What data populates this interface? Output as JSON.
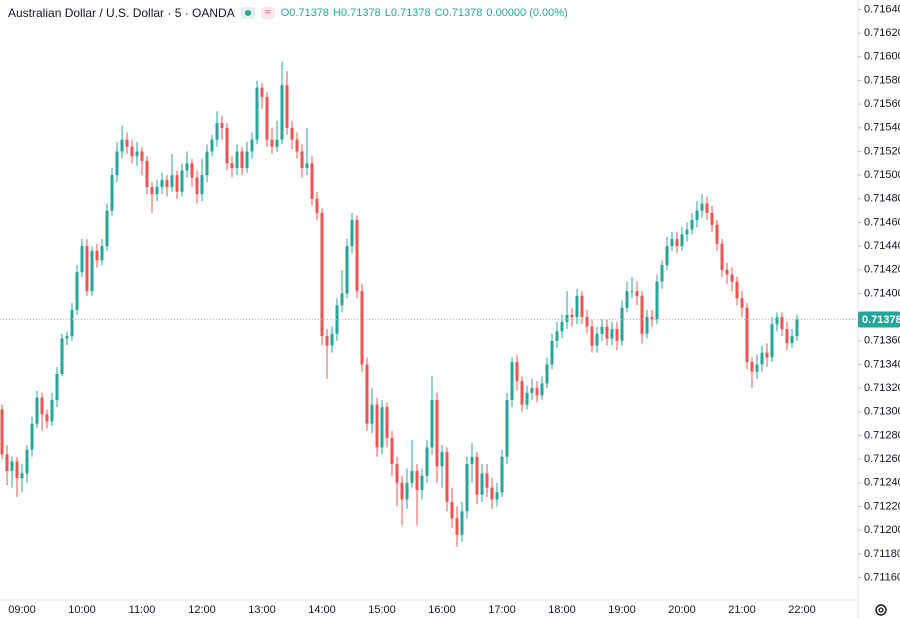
{
  "chart_data": {
    "type": "candlestick",
    "title": "Australian Dollar / U.S. Dollar · 5 · OANDA",
    "legend": [
      "O0.71378",
      "H0.71378",
      "L0.71378",
      "C0.71378",
      "0.00000 (0.00%)"
    ],
    "up_color": "#26a69a",
    "down_color": "#ef5350",
    "last_price": 0.71378,
    "ylim": [
      0.71141,
      0.71648
    ],
    "yticks": [
      {
        "value": 0.7116,
        "label": "0.71160"
      },
      {
        "value": 0.7118,
        "label": "0.71180"
      },
      {
        "value": 0.712,
        "label": "0.71200"
      },
      {
        "value": 0.7122,
        "label": "0.71220"
      },
      {
        "value": 0.7124,
        "label": "0.71240"
      },
      {
        "value": 0.7126,
        "label": "0.71260"
      },
      {
        "value": 0.7128,
        "label": "0.71280"
      },
      {
        "value": 0.713,
        "label": "0.71300"
      },
      {
        "value": 0.7132,
        "label": "0.71320"
      },
      {
        "value": 0.7134,
        "label": "0.71340"
      },
      {
        "value": 0.7136,
        "label": "0.71360"
      },
      {
        "value": 0.7138,
        "label": "0.71380"
      },
      {
        "value": 0.714,
        "label": "0.71400"
      },
      {
        "value": 0.7142,
        "label": "0.71420"
      },
      {
        "value": 0.7144,
        "label": "0.71440"
      },
      {
        "value": 0.7146,
        "label": "0.71460"
      },
      {
        "value": 0.7148,
        "label": "0.71480"
      },
      {
        "value": 0.715,
        "label": "0.71500"
      },
      {
        "value": 0.7152,
        "label": "0.71520"
      },
      {
        "value": 0.7154,
        "label": "0.71540"
      },
      {
        "value": 0.7156,
        "label": "0.71560"
      },
      {
        "value": 0.7158,
        "label": "0.71580"
      },
      {
        "value": 0.716,
        "label": "0.71600"
      },
      {
        "value": 0.7162,
        "label": "0.71620"
      },
      {
        "value": 0.7164,
        "label": "0.71640"
      }
    ],
    "categories": [
      null,
      null,
      null,
      null,
      "09:00",
      null,
      null,
      null,
      null,
      null,
      null,
      null,
      null,
      null,
      null,
      null,
      "10:00",
      null,
      null,
      null,
      null,
      null,
      null,
      null,
      null,
      null,
      null,
      null,
      "11:00",
      null,
      null,
      null,
      null,
      null,
      null,
      null,
      null,
      null,
      null,
      null,
      "12:00",
      null,
      null,
      null,
      null,
      null,
      null,
      null,
      null,
      null,
      null,
      null,
      "13:00",
      null,
      null,
      null,
      null,
      null,
      null,
      null,
      null,
      null,
      null,
      null,
      "14:00",
      null,
      null,
      null,
      null,
      null,
      null,
      null,
      null,
      null,
      null,
      null,
      "15:00",
      null,
      null,
      null,
      null,
      null,
      null,
      null,
      null,
      null,
      null,
      null,
      "16:00",
      null,
      null,
      null,
      null,
      null,
      null,
      null,
      null,
      null,
      null,
      null,
      "17:00",
      null,
      null,
      null,
      null,
      null,
      null,
      null,
      null,
      null,
      null,
      null,
      "18:00",
      null,
      null,
      null,
      null,
      null,
      null,
      null,
      null,
      null,
      null,
      null,
      "19:00",
      null,
      null,
      null,
      null,
      null,
      null,
      null,
      null,
      null,
      null,
      null,
      "20:00",
      null,
      null,
      null,
      null,
      null,
      null,
      null,
      null,
      null,
      null,
      null,
      "21:00",
      null,
      null,
      null,
      null,
      null,
      null,
      null,
      null,
      null,
      null,
      null,
      "22:00"
    ],
    "open": [
      0.71302,
      0.71264,
      0.7125,
      0.71258,
      0.71244,
      0.71248,
      0.71268,
      0.7129,
      0.71312,
      0.71298,
      0.71292,
      0.7131,
      0.71332,
      0.71362,
      0.71364,
      0.71386,
      0.71418,
      0.7144,
      0.71402,
      0.71436,
      0.71428,
      0.7144,
      0.7147,
      0.715,
      0.7152,
      0.7153,
      0.71524,
      0.71516,
      0.7152,
      0.71512,
      0.7149,
      0.71484,
      0.7149,
      0.71496,
      0.7149,
      0.715,
      0.71486,
      0.71504,
      0.7151,
      0.71498,
      0.71484,
      0.715,
      0.7152,
      0.7153,
      0.71544,
      0.7154,
      0.7151,
      0.71506,
      0.7152,
      0.71506,
      0.7152,
      0.7153,
      0.71574,
      0.71566,
      0.7153,
      0.71524,
      0.7153,
      0.71576,
      0.7154,
      0.7153,
      0.7152,
      0.71506,
      0.7151,
      0.7148,
      0.71468,
      0.71364,
      0.71356,
      0.71366,
      0.7139,
      0.714,
      0.7144,
      0.71462,
      0.71402,
      0.7134,
      0.7129,
      0.71306,
      0.7127,
      0.71304,
      0.71278,
      0.71256,
      0.7124,
      0.71226,
      0.7124,
      0.7125,
      0.71234,
      0.71246,
      0.7127,
      0.7131,
      0.71254,
      0.71266,
      0.71224,
      0.7121,
      0.71196,
      0.71216,
      0.71256,
      0.71262,
      0.7123,
      0.71248,
      0.71236,
      0.71226,
      0.71232,
      0.71262,
      0.7131,
      0.71342,
      0.71326,
      0.71306,
      0.71316,
      0.7132,
      0.71314,
      0.71324,
      0.7134,
      0.7136,
      0.71368,
      0.71376,
      0.71382,
      0.7138,
      0.71398,
      0.7138,
      0.71372,
      0.71356,
      0.71366,
      0.71372,
      0.71362,
      0.7137,
      0.7136,
      0.71388,
      0.71402,
      0.71402,
      0.71398,
      0.71366,
      0.7138,
      0.71378,
      0.7141,
      0.71424,
      0.7144,
      0.71446,
      0.7144,
      0.7145,
      0.71454,
      0.71462,
      0.7147,
      0.71476,
      0.71468,
      0.71458,
      0.71442,
      0.7142,
      0.71416,
      0.7141,
      0.71396,
      0.71388,
      0.71342,
      0.71334,
      0.7134,
      0.7135,
      0.71346,
      0.71374,
      0.7138,
      0.7137,
      0.71358,
      0.71364,
      null
    ],
    "high": [
      0.71306,
      0.71272,
      0.71262,
      0.71262,
      0.71256,
      0.71272,
      0.71296,
      0.71318,
      0.71316,
      0.71302,
      0.71316,
      0.71338,
      0.71366,
      0.71368,
      0.71392,
      0.71424,
      0.71446,
      0.71446,
      0.7144,
      0.71442,
      0.71446,
      0.71476,
      0.71506,
      0.71528,
      0.71542,
      0.71536,
      0.7153,
      0.71528,
      0.71524,
      0.71516,
      0.71494,
      0.71496,
      0.71502,
      0.715,
      0.71518,
      0.71504,
      0.7151,
      0.7152,
      0.71514,
      0.71504,
      0.71514,
      0.71526,
      0.71534,
      0.71554,
      0.7155,
      0.71544,
      0.71516,
      0.71526,
      0.71524,
      0.71528,
      0.71536,
      0.7158,
      0.71578,
      0.7157,
      0.7154,
      0.71546,
      0.71596,
      0.71588,
      0.71546,
      0.71536,
      0.71526,
      0.7154,
      0.71516,
      0.71486,
      0.71472,
      0.7137,
      0.71372,
      0.71396,
      0.7142,
      0.71446,
      0.71468,
      0.71466,
      0.71408,
      0.71346,
      0.7132,
      0.71312,
      0.7131,
      0.71308,
      0.71284,
      0.71262,
      0.71246,
      0.71252,
      0.71276,
      0.71256,
      0.71252,
      0.71276,
      0.7133,
      0.71316,
      0.71272,
      0.7127,
      0.71236,
      0.7122,
      0.71224,
      0.71262,
      0.71274,
      0.71266,
      0.71256,
      0.71256,
      0.71244,
      0.7124,
      0.71268,
      0.71316,
      0.71346,
      0.71348,
      0.7133,
      0.71322,
      0.71328,
      0.71326,
      0.7133,
      0.71346,
      0.71366,
      0.71376,
      0.71382,
      0.71402,
      0.71388,
      0.71404,
      0.71402,
      0.71386,
      0.71378,
      0.71372,
      0.71378,
      0.71378,
      0.71376,
      0.71376,
      0.71394,
      0.7141,
      0.71414,
      0.7141,
      0.71402,
      0.71386,
      0.71386,
      0.71416,
      0.71428,
      0.71448,
      0.71452,
      0.71452,
      0.71456,
      0.7146,
      0.71468,
      0.71478,
      0.71484,
      0.71482,
      0.71474,
      0.71462,
      0.71446,
      0.71426,
      0.71422,
      0.71414,
      0.71402,
      0.71392,
      0.71346,
      0.71348,
      0.71356,
      0.71358,
      0.7138,
      0.71384,
      0.71384,
      0.71376,
      0.7137,
      0.71382,
      null
    ],
    "low": [
      0.7126,
      0.71238,
      0.71236,
      0.71228,
      0.71232,
      0.7124,
      0.71262,
      0.71286,
      0.71284,
      0.71286,
      0.71288,
      0.71304,
      0.7133,
      0.71356,
      0.7136,
      0.71382,
      0.71414,
      0.71398,
      0.71398,
      0.71422,
      0.71424,
      0.71436,
      0.71466,
      0.71494,
      0.71514,
      0.71518,
      0.7151,
      0.71508,
      0.715,
      0.71484,
      0.71468,
      0.71478,
      0.71484,
      0.71482,
      0.71486,
      0.7148,
      0.71482,
      0.71498,
      0.7149,
      0.71476,
      0.71478,
      0.71494,
      0.71516,
      0.71524,
      0.7153,
      0.71504,
      0.71498,
      0.715,
      0.715,
      0.71502,
      0.71514,
      0.71526,
      0.71556,
      0.71524,
      0.71518,
      0.7152,
      0.71526,
      0.71534,
      0.71522,
      0.71514,
      0.71498,
      0.715,
      0.71474,
      0.71462,
      0.71356,
      0.71328,
      0.7135,
      0.7136,
      0.71384,
      0.71396,
      0.71434,
      0.71396,
      0.71334,
      0.71284,
      0.71282,
      0.71262,
      0.71264,
      0.7127,
      0.71246,
      0.7122,
      0.71204,
      0.71218,
      0.71236,
      0.71204,
      0.71226,
      0.7124,
      0.71264,
      0.7124,
      0.71236,
      0.71216,
      0.71202,
      0.71186,
      0.7119,
      0.7121,
      0.7124,
      0.71222,
      0.71224,
      0.71228,
      0.71218,
      0.7122,
      0.71228,
      0.71256,
      0.71304,
      0.71318,
      0.713,
      0.71302,
      0.7131,
      0.71308,
      0.7131,
      0.7132,
      0.71336,
      0.71354,
      0.71362,
      0.7137,
      0.71372,
      0.71374,
      0.71374,
      0.71366,
      0.7135,
      0.7135,
      0.7136,
      0.71356,
      0.71356,
      0.71352,
      0.71356,
      0.71384,
      0.71396,
      0.7139,
      0.71358,
      0.71362,
      0.71372,
      0.71374,
      0.71404,
      0.7142,
      0.71436,
      0.71434,
      0.71436,
      0.71444,
      0.7145,
      0.71456,
      0.71464,
      0.71462,
      0.71452,
      0.71436,
      0.71414,
      0.71408,
      0.71402,
      0.7139,
      0.7138,
      0.71336,
      0.7132,
      0.71328,
      0.71334,
      0.71338,
      0.71342,
      0.71368,
      0.71364,
      0.71352,
      0.71354,
      0.7136,
      null
    ],
    "close": [
      0.71264,
      0.7125,
      0.71258,
      0.71244,
      0.71248,
      0.71268,
      0.7129,
      0.71312,
      0.71298,
      0.71292,
      0.7131,
      0.71332,
      0.71362,
      0.71364,
      0.71386,
      0.71418,
      0.7144,
      0.71402,
      0.71436,
      0.71428,
      0.7144,
      0.7147,
      0.715,
      0.7152,
      0.7153,
      0.71524,
      0.71516,
      0.7152,
      0.71512,
      0.7149,
      0.71484,
      0.7149,
      0.71496,
      0.7149,
      0.715,
      0.71486,
      0.71504,
      0.7151,
      0.71498,
      0.71484,
      0.715,
      0.7152,
      0.7153,
      0.71544,
      0.7154,
      0.7151,
      0.71506,
      0.7152,
      0.71506,
      0.7152,
      0.7153,
      0.71574,
      0.71566,
      0.7153,
      0.71524,
      0.7153,
      0.71576,
      0.7154,
      0.7153,
      0.7152,
      0.71506,
      0.7151,
      0.7148,
      0.71468,
      0.71364,
      0.71356,
      0.71366,
      0.7139,
      0.714,
      0.7144,
      0.71462,
      0.71402,
      0.7134,
      0.7129,
      0.71306,
      0.7127,
      0.71304,
      0.71278,
      0.71256,
      0.7124,
      0.71226,
      0.7124,
      0.7125,
      0.71234,
      0.71246,
      0.7127,
      0.7131,
      0.71254,
      0.71266,
      0.71224,
      0.7121,
      0.71196,
      0.71216,
      0.71256,
      0.71262,
      0.7123,
      0.71248,
      0.71236,
      0.71226,
      0.71232,
      0.71262,
      0.7131,
      0.71342,
      0.71326,
      0.71306,
      0.71316,
      0.7132,
      0.71314,
      0.71324,
      0.7134,
      0.7136,
      0.71368,
      0.71376,
      0.71382,
      0.7138,
      0.71398,
      0.7138,
      0.71372,
      0.71356,
      0.71366,
      0.71372,
      0.71362,
      0.7137,
      0.7136,
      0.71388,
      0.71402,
      0.71402,
      0.71398,
      0.71366,
      0.7138,
      0.71378,
      0.7141,
      0.71424,
      0.7144,
      0.71446,
      0.7144,
      0.7145,
      0.71454,
      0.71462,
      0.7147,
      0.71476,
      0.71468,
      0.71458,
      0.71442,
      0.7142,
      0.71416,
      0.7141,
      0.71396,
      0.71388,
      0.71342,
      0.71334,
      0.7134,
      0.7135,
      0.71346,
      0.71374,
      0.7138,
      0.7137,
      0.71358,
      0.71364,
      0.71378,
      null
    ]
  }
}
